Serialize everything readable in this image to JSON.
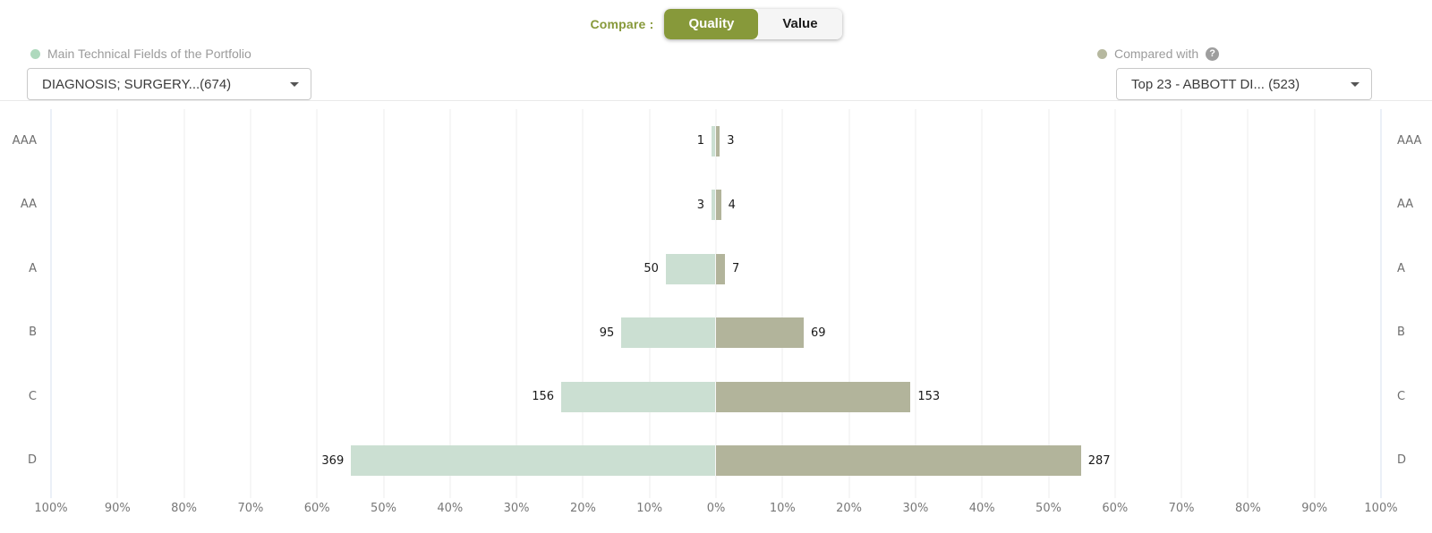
{
  "toolbar": {
    "compare_label": "Compare :",
    "options": [
      {
        "label": "Quality",
        "selected": true
      },
      {
        "label": "Value",
        "selected": false
      }
    ]
  },
  "left_panel": {
    "legend_label": "Main Technical Fields of the Portfolio",
    "legend_dot_color": "#aed9bd",
    "dropdown_value": "DIAGNOSIS; SURGERY...(674)"
  },
  "right_panel": {
    "legend_label": "Compared with",
    "legend_dot_color": "#b6b89f",
    "help_icon": "?",
    "dropdown_value": "Top 23 - ABBOTT DI... (523)"
  },
  "colors": {
    "accent_olive": "#87993a",
    "left_bar": "#cbdfd2",
    "right_bar": "#b2b49b"
  },
  "chart_data": {
    "type": "bar",
    "subtype": "diverging-horizontal (tornado) comparison by quality rating",
    "categories": [
      "AAA",
      "AA",
      "A",
      "B",
      "C",
      "D"
    ],
    "series": [
      {
        "name": "Main Technical Fields of the Portfolio",
        "side": "left",
        "color": "#cbdfd2",
        "total": 674,
        "values": [
          1,
          3,
          50,
          95,
          156,
          369
        ]
      },
      {
        "name": "Compared with",
        "side": "right",
        "color": "#b2b49b",
        "total": 523,
        "values": [
          3,
          4,
          7,
          69,
          153,
          287
        ]
      }
    ],
    "x_axis": {
      "unit": "percent of portfolio",
      "min": 0,
      "max": 100,
      "tick_step": 10,
      "tick_labels": [
        "100%",
        "90%",
        "80%",
        "70%",
        "60%",
        "50%",
        "40%",
        "30%",
        "20%",
        "10%",
        "0%",
        "10%",
        "20%",
        "30%",
        "40%",
        "50%",
        "60%",
        "70%",
        "80%",
        "90%",
        "100%"
      ]
    },
    "grid": true,
    "value_labels": "outside bar ends"
  }
}
